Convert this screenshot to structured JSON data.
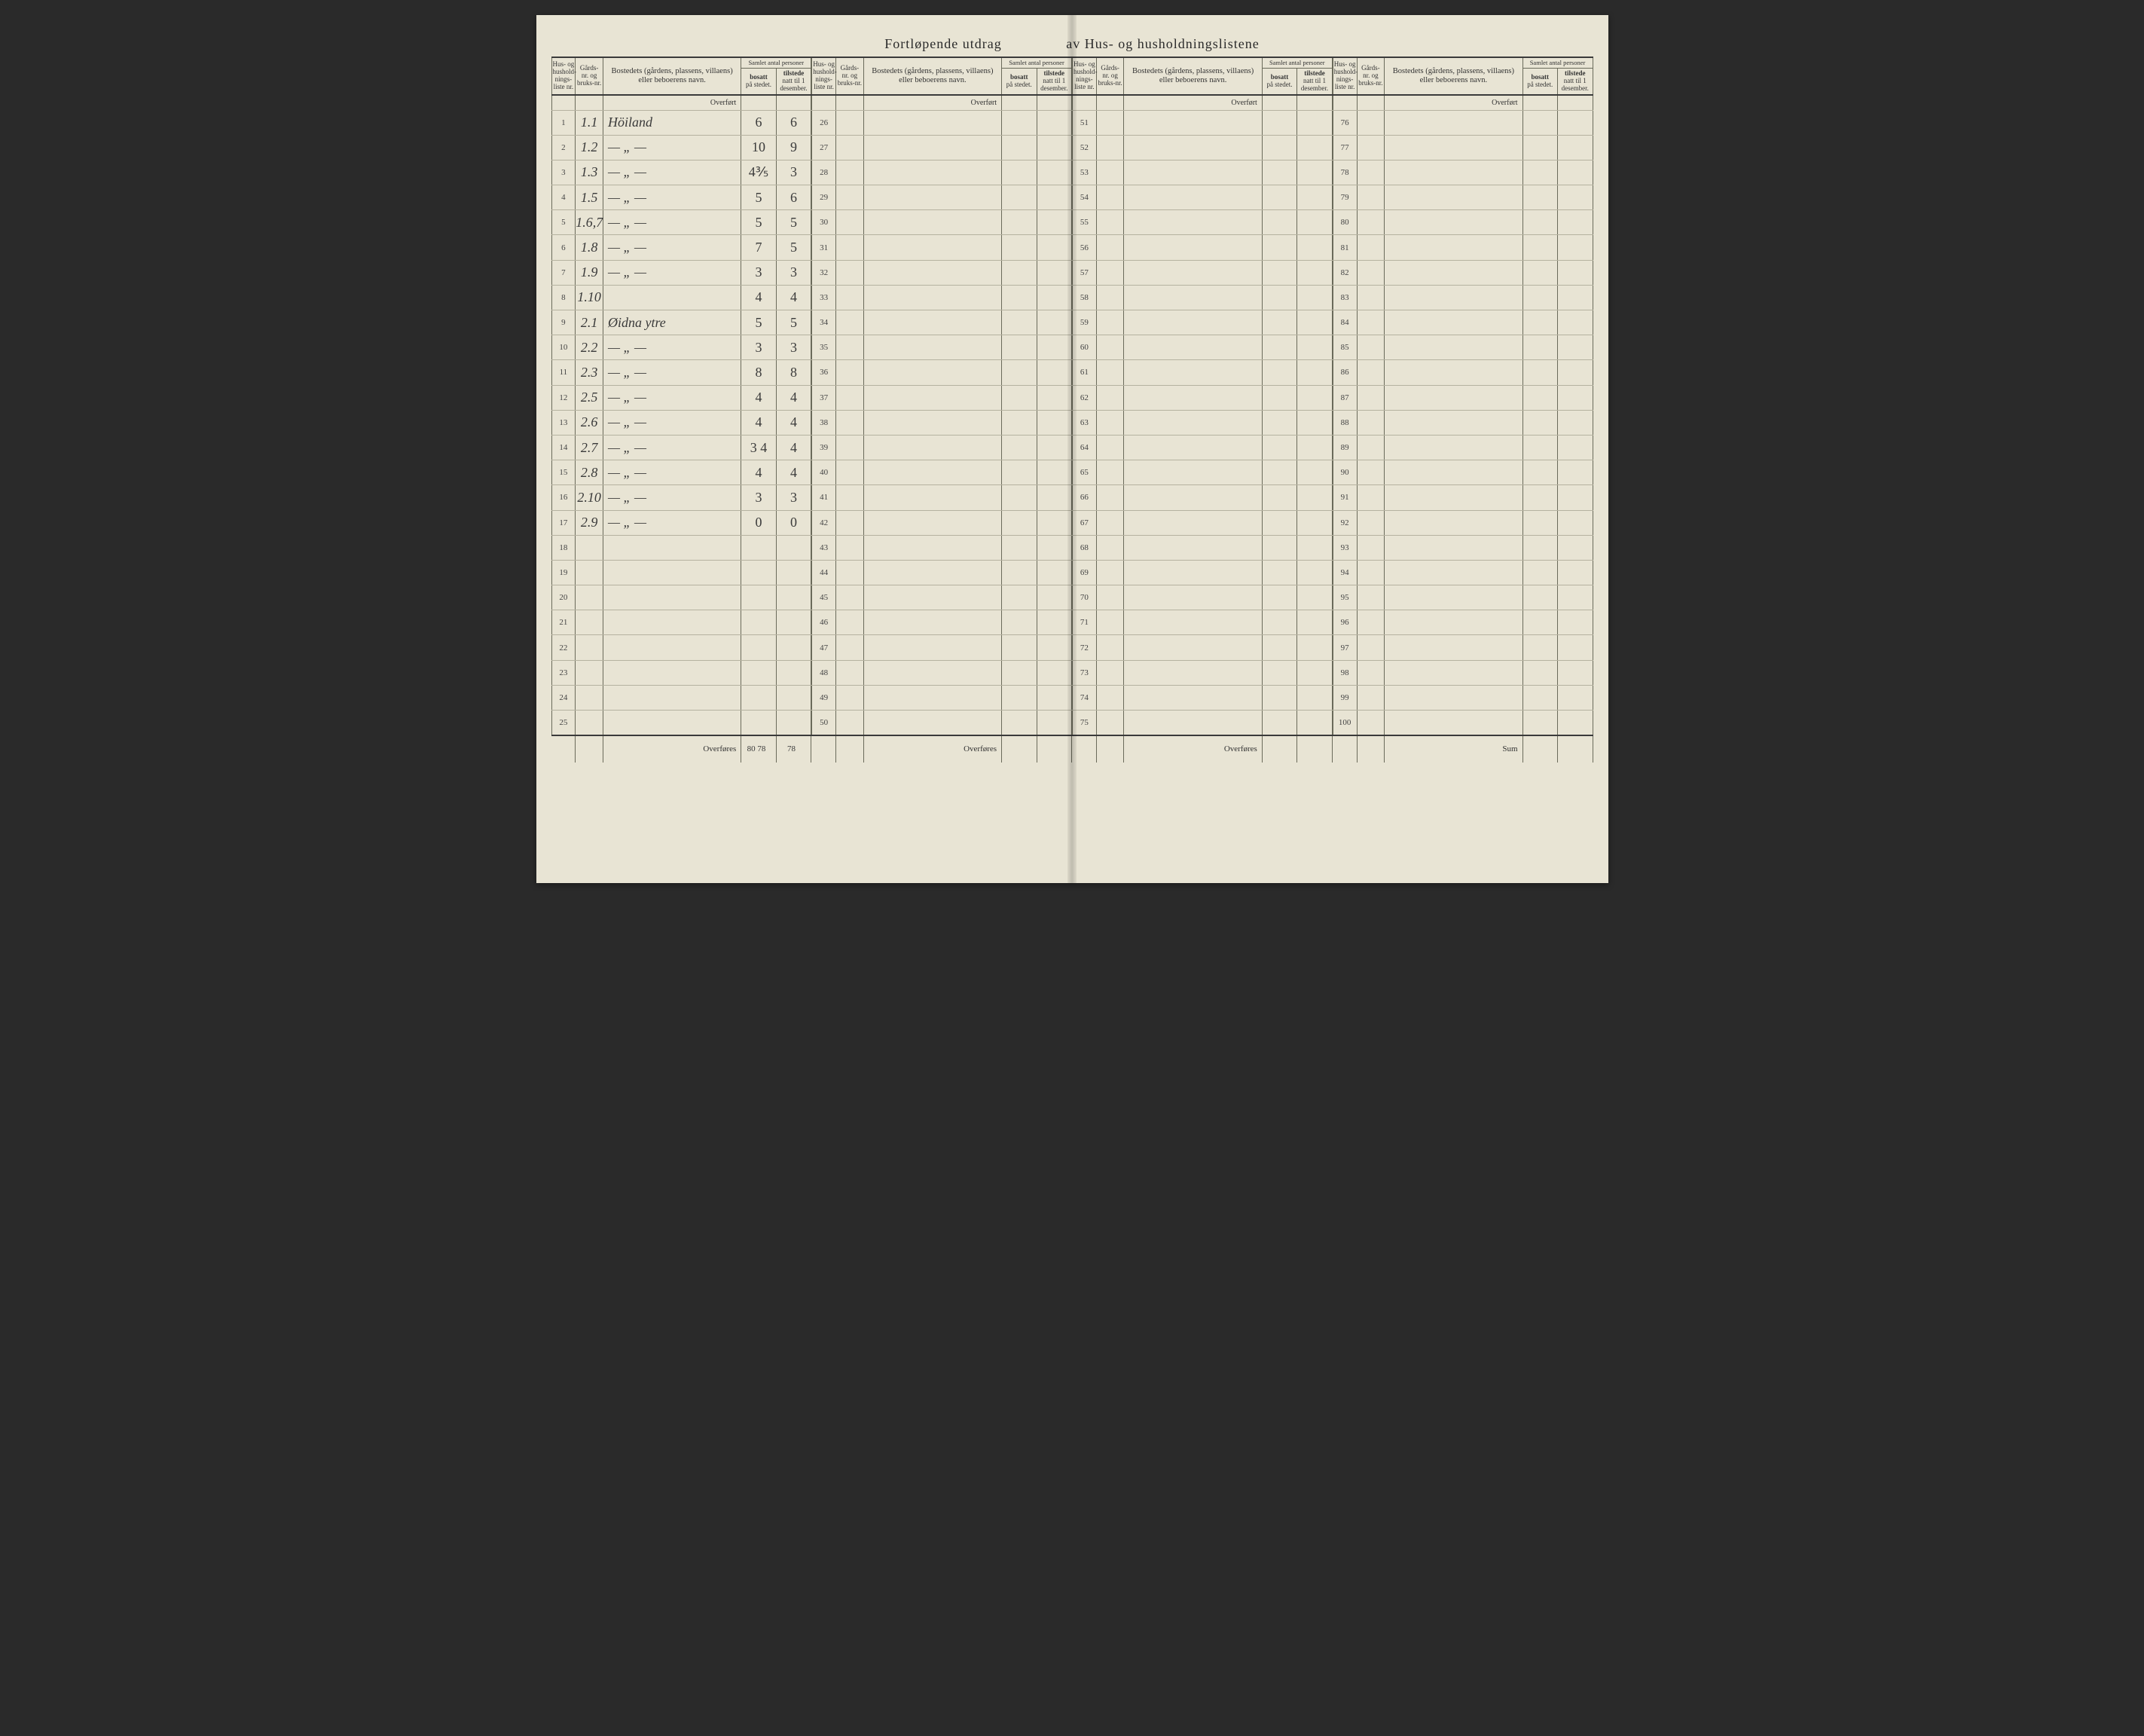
{
  "title_left": "Fortløpende utdrag",
  "title_right": "av Hus- og husholdningslistene",
  "headers": {
    "liste": "Hus- og hushold-nings-liste nr.",
    "gard": "Gårds-nr. og bruks-nr.",
    "name": "Bostedets (gårdens, plassens, villaens) eller beboerens navn.",
    "samlet": "Samlet antal personer",
    "bosatt": "bosatt på stedet.",
    "tilstede": "tilstede natt til 1 desember."
  },
  "labels": {
    "overfort": "Overført",
    "overfores": "Overføres",
    "sum": "Sum"
  },
  "panel1": {
    "start": 1,
    "rows": [
      {
        "g": "1.1",
        "n": "Höiland",
        "b": "6",
        "t": "6"
      },
      {
        "g": "1.2",
        "n": "— „ —",
        "b": "10",
        "t": "9"
      },
      {
        "g": "1.3",
        "n": "— „ —",
        "b": "4⅗",
        "t": "3"
      },
      {
        "g": "1.5",
        "n": "— „ —",
        "b": "5",
        "t": "6"
      },
      {
        "g": "1.6,7",
        "n": "— „ —",
        "b": "5",
        "t": "5"
      },
      {
        "g": "1.8",
        "n": "— „ —",
        "b": "7",
        "t": "5"
      },
      {
        "g": "1.9",
        "n": "— „ —",
        "b": "3",
        "t": "3"
      },
      {
        "g": "1.10",
        "n": "",
        "b": "4",
        "t": "4"
      },
      {
        "g": "2.1",
        "n": "Øidna ytre",
        "b": "5",
        "t": "5"
      },
      {
        "g": "2.2",
        "n": "— „ —",
        "b": "3",
        "t": "3"
      },
      {
        "g": "2.3",
        "n": "— „ —",
        "b": "8",
        "t": "8"
      },
      {
        "g": "2.5",
        "n": "— „ —",
        "b": "4",
        "t": "4"
      },
      {
        "g": "2.6",
        "n": "— „ —",
        "b": "4",
        "t": "4"
      },
      {
        "g": "2.7",
        "n": "— „ —",
        "b": "3 4",
        "t": "4"
      },
      {
        "g": "2.8",
        "n": "— „ —",
        "b": "4",
        "t": "4"
      },
      {
        "g": "2.10",
        "n": "— „ —",
        "b": "3",
        "t": "3"
      },
      {
        "g": "2.9",
        "n": "— „ —",
        "b": "0",
        "t": "0"
      },
      {
        "g": "",
        "n": "",
        "b": "",
        "t": ""
      },
      {
        "g": "",
        "n": "",
        "b": "",
        "t": ""
      },
      {
        "g": "",
        "n": "",
        "b": "",
        "t": ""
      },
      {
        "g": "",
        "n": "",
        "b": "",
        "t": ""
      },
      {
        "g": "",
        "n": "",
        "b": "",
        "t": ""
      },
      {
        "g": "",
        "n": "",
        "b": "",
        "t": ""
      },
      {
        "g": "",
        "n": "",
        "b": "",
        "t": ""
      },
      {
        "g": "",
        "n": "",
        "b": "",
        "t": ""
      }
    ],
    "footer_b": "80 78",
    "footer_t": "78"
  },
  "panel2": {
    "start": 26
  },
  "panel3": {
    "start": 51
  },
  "panel4": {
    "start": 76
  },
  "colors": {
    "paper": "#e8e4d4",
    "ink": "#3a3a3a",
    "rule": "#6a6a5a",
    "lightrule": "#b5b2a0"
  }
}
